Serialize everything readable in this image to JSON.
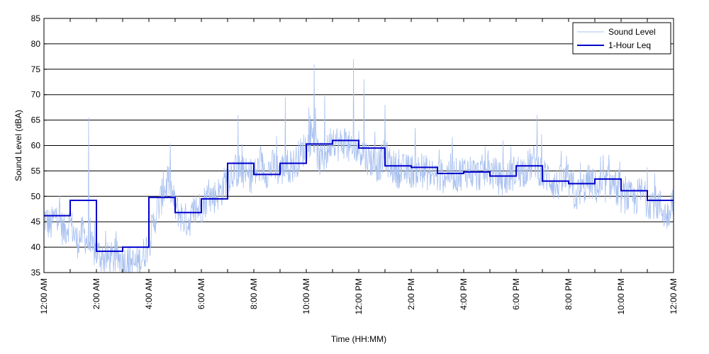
{
  "chart_data": {
    "type": "line",
    "xlabel": "Time (HH:MM)",
    "ylabel": "Sound Level (dBA)",
    "xlim": [
      0,
      24
    ],
    "ylim": [
      35,
      85
    ],
    "y_ticks": [
      35,
      40,
      45,
      50,
      55,
      60,
      65,
      70,
      75,
      80,
      85
    ],
    "x_ticks": [
      {
        "hour": 0,
        "label": "12:00 AM"
      },
      {
        "hour": 2,
        "label": "2:00 AM"
      },
      {
        "hour": 4,
        "label": "4:00 AM"
      },
      {
        "hour": 6,
        "label": "6:00 AM"
      },
      {
        "hour": 8,
        "label": "8:00 AM"
      },
      {
        "hour": 10,
        "label": "10:00 AM"
      },
      {
        "hour": 12,
        "label": "12:00 PM"
      },
      {
        "hour": 14,
        "label": "2:00 PM"
      },
      {
        "hour": 16,
        "label": "4:00 PM"
      },
      {
        "hour": 18,
        "label": "6:00 PM"
      },
      {
        "hour": 20,
        "label": "8:00 PM"
      },
      {
        "hour": 22,
        "label": "10:00 PM"
      },
      {
        "hour": 24,
        "label": "12:00 AM"
      }
    ],
    "grid": "horizontal",
    "legend_position": "top-right",
    "series": [
      {
        "name": "Sound Level",
        "color": "#a8c0f0",
        "style": "thin-line",
        "x": [
          0,
          0.25,
          0.5,
          0.75,
          1,
          1.25,
          1.5,
          1.75,
          2,
          2.25,
          2.5,
          2.75,
          3,
          3.25,
          3.5,
          3.75,
          4,
          4.25,
          4.5,
          4.75,
          5,
          5.25,
          5.5,
          5.75,
          6,
          6.25,
          6.5,
          6.75,
          7,
          7.25,
          7.5,
          7.75,
          8,
          8.25,
          8.5,
          8.75,
          9,
          9.25,
          9.5,
          9.75,
          10,
          10.25,
          10.5,
          10.75,
          11,
          11.25,
          11.5,
          11.75,
          12,
          12.25,
          12.5,
          12.75,
          13,
          13.25,
          13.5,
          13.75,
          14,
          14.25,
          14.5,
          14.75,
          15,
          15.25,
          15.5,
          15.75,
          16,
          16.25,
          16.5,
          16.75,
          17,
          17.25,
          17.5,
          17.75,
          18,
          18.25,
          18.5,
          18.75,
          19,
          19.25,
          19.5,
          19.75,
          20,
          20.25,
          20.5,
          20.75,
          21,
          21.25,
          21.5,
          21.75,
          22,
          22.25,
          22.5,
          22.75,
          23,
          23.25,
          23.5,
          23.75,
          24
        ],
        "values": [
          46,
          44,
          47,
          43,
          45,
          41,
          43,
          40,
          39,
          38,
          37.5,
          38,
          37.5,
          37,
          36.5,
          38,
          41,
          46,
          50,
          53,
          48,
          46,
          45,
          47,
          48,
          50,
          50,
          51,
          54,
          55,
          55,
          54,
          54,
          56,
          55,
          56,
          55,
          56,
          56,
          58,
          60,
          62,
          57,
          58,
          62,
          60,
          61,
          58,
          60,
          58,
          57,
          56,
          58,
          56,
          55,
          55,
          55,
          55,
          55,
          54,
          54,
          54,
          55,
          54,
          55,
          55,
          54,
          55,
          55,
          54,
          53,
          54,
          55,
          55,
          56,
          57,
          54,
          54,
          52,
          53,
          53,
          50,
          51,
          53,
          52,
          51,
          53,
          52,
          50,
          50,
          49,
          51,
          49,
          49,
          48,
          46,
          50
        ],
        "peaks": [
          {
            "x": 1.7,
            "y": 65.5
          },
          {
            "x": 4.55,
            "y": 55
          },
          {
            "x": 7.4,
            "y": 66
          },
          {
            "x": 9.2,
            "y": 69.5
          },
          {
            "x": 10.3,
            "y": 76
          },
          {
            "x": 10.7,
            "y": 70
          },
          {
            "x": 11.8,
            "y": 77
          },
          {
            "x": 12.2,
            "y": 73
          },
          {
            "x": 13.0,
            "y": 68
          },
          {
            "x": 17.5,
            "y": 61
          },
          {
            "x": 18.8,
            "y": 66
          }
        ]
      },
      {
        "name": "1-Hour Leq",
        "color": "#0000cc",
        "style": "step",
        "values": [
          46.2,
          49.2,
          39.2,
          40.0,
          49.8,
          46.8,
          49.5,
          56.5,
          54.3,
          56.5,
          60.3,
          61.0,
          59.5,
          56.0,
          55.7,
          54.5,
          54.8,
          54.0,
          56.0,
          53.0,
          52.5,
          53.4,
          51.1,
          49.2
        ]
      }
    ]
  }
}
